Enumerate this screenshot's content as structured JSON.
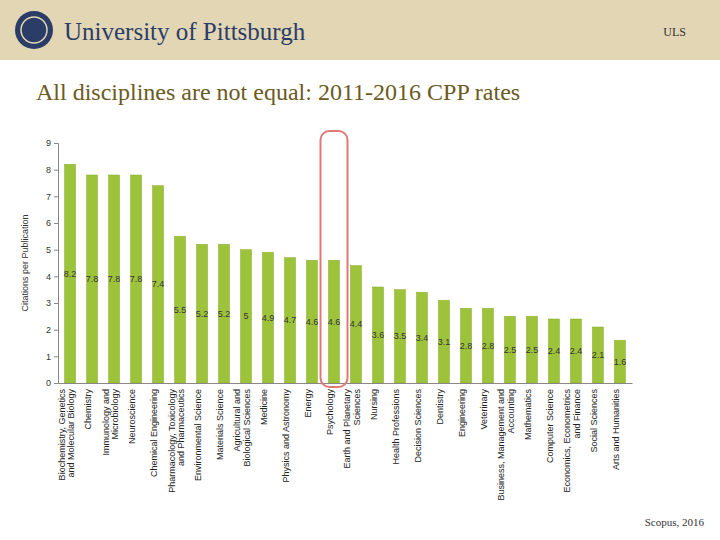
{
  "header": {
    "institution": "University of Pittsburgh",
    "unit": "ULS"
  },
  "chart_data": {
    "type": "bar",
    "title": "All disciplines are not equal: 2011-2016 CPP rates",
    "y_label": "Citations per Publication",
    "source": "Scopus, 2016",
    "categories": [
      "Biochemistry, Genetics and Molecular Biology",
      "Chemistry",
      "Immunology and Microbiology",
      "Neuroscience",
      "Chemical Engineering",
      "Pharmacology, Toxicology and Pharmaceutics",
      "Environmental Science",
      "Materials Science",
      "Agricultural and Biological Sciences",
      "Medicine",
      "Physics and Astronomy",
      "Energy",
      "Psychology",
      "Earth and Planetary Sciences",
      "Nursing",
      "Health Professions",
      "Decision Sciences",
      "Dentistry",
      "Engineering",
      "Veterinary",
      "Business, Management and Accounting",
      "Mathematics",
      "Computer Science",
      "Economics, Econometrics and Finance",
      "Social Sciences",
      "Arts and Humanities"
    ],
    "values": [
      8.2,
      7.8,
      7.8,
      7.8,
      7.4,
      5.5,
      5.2,
      5.2,
      5,
      4.9,
      4.7,
      4.6,
      4.6,
      4.4,
      3.6,
      3.5,
      3.4,
      3.1,
      2.8,
      2.8,
      2.5,
      2.5,
      2.4,
      2.4,
      2.1,
      1.6
    ],
    "color": "#9dc33b",
    "ylim": [
      0,
      9
    ],
    "yticks": [
      0,
      1,
      2,
      3,
      4,
      5,
      6,
      7,
      8,
      9
    ],
    "grid": false,
    "data_labels": true
  }
}
